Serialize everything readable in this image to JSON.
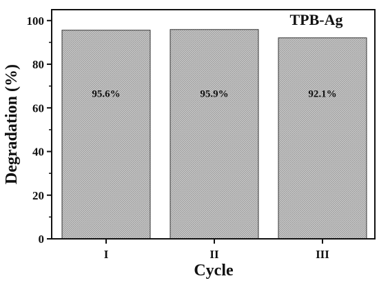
{
  "chart_data": {
    "type": "bar",
    "title": "TPB-Ag",
    "xlabel": "Cycle",
    "ylabel": "Degradation (%)",
    "categories": [
      "I",
      "II",
      "III"
    ],
    "values": [
      95.6,
      95.9,
      92.1
    ],
    "data_labels": [
      "95.6%",
      "95.9%",
      "92.1%"
    ],
    "ylim": [
      0,
      105
    ],
    "yticks": [
      0,
      20,
      40,
      60,
      80,
      100
    ],
    "grid": false,
    "legend": "none",
    "bar_fill": "#c8c8c8",
    "bar_pattern_color": "#8a8a8a",
    "bar_edge": "#333333"
  }
}
